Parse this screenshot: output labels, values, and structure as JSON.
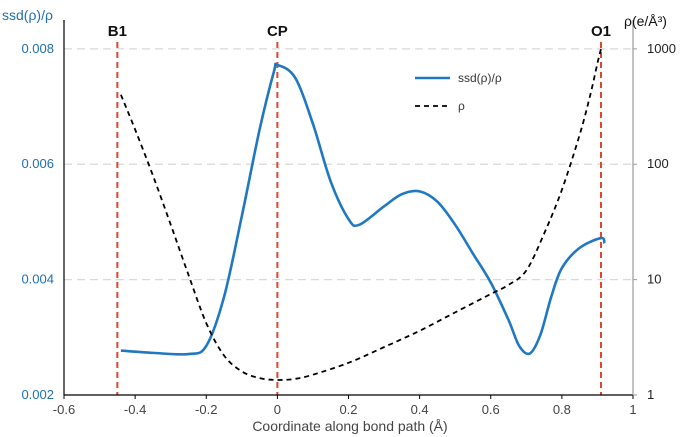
{
  "chart_data": {
    "type": "line",
    "xlabel": "Coordinate along bond path (Å)",
    "ylabel_left": "ssd(ρ)/ρ",
    "ylabel_right": "ρ(e/Å³)",
    "xlim": [
      -0.6,
      1.0
    ],
    "ylim_left": [
      0.002,
      0.0085
    ],
    "ylim_right": [
      1,
      1000
    ],
    "right_axis_scale": "log",
    "x_ticks": [
      -0.6,
      -0.4,
      -0.2,
      0,
      0.2,
      0.4,
      0.6,
      0.8,
      1
    ],
    "x_tick_labels": [
      "-0.6",
      "-0.4",
      "-0.2",
      "0",
      "0.2",
      "0.4",
      "0.6",
      "0.8",
      "1"
    ],
    "y_left_ticks": [
      0.002,
      0.004,
      0.006,
      0.008
    ],
    "y_left_tick_labels": [
      "0.002",
      "0.004",
      "0.006",
      "0.008"
    ],
    "y_right_ticks": [
      1,
      10,
      100,
      1000
    ],
    "y_right_tick_labels": [
      "1",
      "10",
      "100",
      "1000"
    ],
    "grid": "horizontal dashed",
    "legend_position": "top-right",
    "markers": [
      {
        "label": "B1",
        "x": -0.45
      },
      {
        "label": "CP",
        "x": 0.0
      },
      {
        "label": "O1",
        "x": 0.91
      }
    ],
    "series": [
      {
        "name": "ssd(ρ)/ρ",
        "axis": "left",
        "color": "#1f78c1",
        "style": "solid",
        "x": [
          -0.44,
          -0.35,
          -0.25,
          -0.2,
          -0.15,
          -0.1,
          -0.05,
          -0.01,
          0.0,
          0.05,
          0.1,
          0.15,
          0.2,
          0.23,
          0.3,
          0.35,
          0.4,
          0.45,
          0.5,
          0.55,
          0.6,
          0.65,
          0.68,
          0.71,
          0.74,
          0.77,
          0.8,
          0.85,
          0.91,
          0.92
        ],
        "y": [
          0.00277,
          0.00273,
          0.00271,
          0.00285,
          0.0037,
          0.0051,
          0.0066,
          0.0076,
          0.00772,
          0.0075,
          0.0067,
          0.0057,
          0.00505,
          0.00495,
          0.00527,
          0.00548,
          0.00553,
          0.00535,
          0.00495,
          0.00445,
          0.00395,
          0.0033,
          0.00285,
          0.00272,
          0.00305,
          0.0037,
          0.0042,
          0.00455,
          0.00472,
          0.00463
        ]
      },
      {
        "name": "ρ",
        "axis": "right",
        "color": "#000000",
        "style": "dashed",
        "x": [
          -0.44,
          -0.4,
          -0.35,
          -0.3,
          -0.25,
          -0.2,
          -0.15,
          -0.1,
          -0.05,
          0.0,
          0.05,
          0.1,
          0.2,
          0.3,
          0.4,
          0.5,
          0.6,
          0.65,
          0.7,
          0.75,
          0.8,
          0.85,
          0.88,
          0.9,
          0.91
        ],
        "y": [
          400,
          200,
          80,
          30,
          11,
          4.2,
          2.2,
          1.6,
          1.4,
          1.35,
          1.38,
          1.5,
          1.9,
          2.6,
          3.6,
          5.2,
          7.5,
          9,
          12,
          25,
          60,
          180,
          400,
          750,
          1000
        ]
      }
    ]
  }
}
